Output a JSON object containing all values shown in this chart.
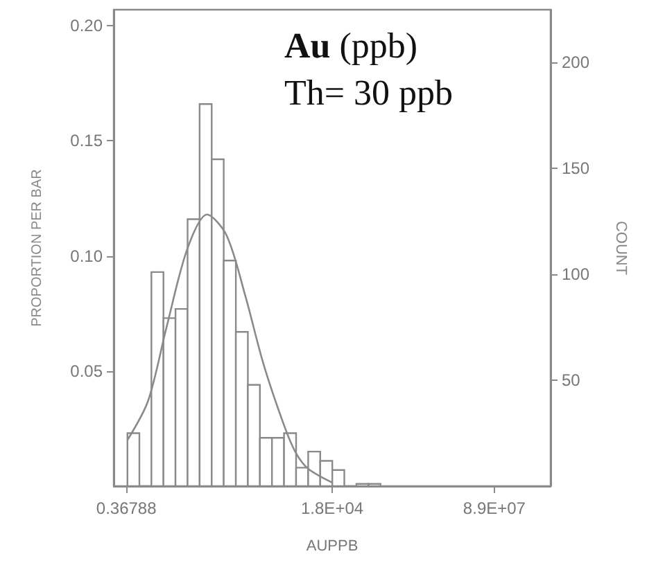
{
  "chart_data": {
    "type": "histogram",
    "xlabel": "AUPPB",
    "ylabel": "PROPORTION PER BAR",
    "y2label": "COUNT",
    "annotations": [
      "Au (ppb)",
      "Th= 30 ppb"
    ],
    "log": "x",
    "color": "#8a8a8a",
    "bins": [
      0.39,
      0.73,
      1.37,
      2.58,
      4.85,
      9.14,
      17.2,
      32.4,
      60.9,
      115,
      216,
      406,
      765,
      1440,
      2710,
      5110,
      9610,
      18100,
      34000,
      64100,
      121000,
      227000
    ],
    "values": [
      0.023,
      0,
      0.093,
      0.073,
      0.077,
      0.116,
      0.166,
      0.142,
      0.098,
      0.067,
      0.044,
      0.021,
      0.021,
      0.023,
      0.008,
      0.015,
      0.011,
      0.007,
      0,
      0.001,
      0.001
    ],
    "series": [
      {
        "type": "line",
        "color": "#8a8a8a",
        "x": [
          0.39,
          1.15,
          3.03,
          9.0,
          25.5,
          70.5,
          187,
          491,
          1470,
          2670,
          5150,
          17700
        ],
        "values": [
          0.02,
          0.037,
          0.069,
          0.103,
          0.118,
          0.109,
          0.083,
          0.053,
          0.026,
          0.0145,
          0.0075,
          0.0016
        ]
      }
    ],
    "xlim": [
      0.19,
      1700000000
    ],
    "xticks": [
      {
        "value": 0.36788,
        "label": "0.36788"
      },
      {
        "value": 18000,
        "label": "1.8E+04"
      },
      {
        "value": 89000000,
        "label": "8.9E+07"
      }
    ],
    "ylim": [
      0,
      0.207
    ],
    "yticks": [
      {
        "value": 0.05,
        "label": "0.05"
      },
      {
        "value": 0.1,
        "label": "0.10"
      },
      {
        "value": 0.15,
        "label": "0.15"
      },
      {
        "value": 0.2,
        "label": "0.20"
      }
    ],
    "y2lim": [
      0,
      225
    ],
    "y2ticks": [
      50,
      100,
      150,
      200
    ]
  }
}
